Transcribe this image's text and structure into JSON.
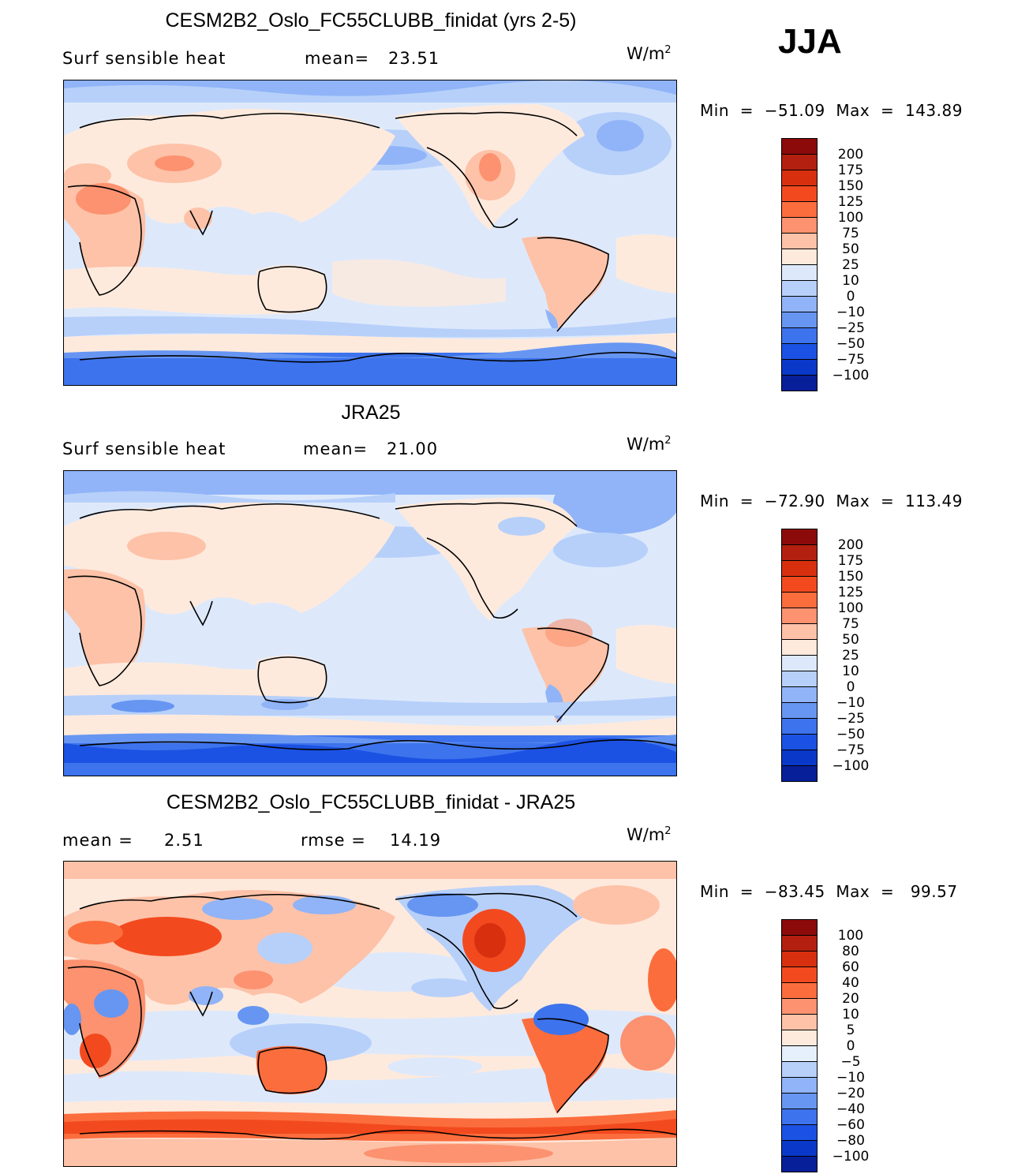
{
  "season": "JJA",
  "chart_data": [
    {
      "type": "heatmap",
      "title": "CESM2B2_Oslo_FC55CLUBB_finidat (yrs 2-5)",
      "variable": "Surf sensible heat",
      "mean_label": "mean=",
      "mean_value": "23.51",
      "units": "W/m",
      "units_power": "2",
      "min_label": "Min",
      "min_value": "−51.09",
      "max_label": "Max",
      "max_value": "143.89",
      "colorbar_levels": [
        "200",
        "175",
        "150",
        "125",
        "100",
        "75",
        "50",
        "25",
        "10",
        "0",
        "−10",
        "−25",
        "−50",
        "−75",
        "−100"
      ],
      "colorbar_colors": [
        "#8c0a0a",
        "#b3200f",
        "#d8300f",
        "#f24a1e",
        "#fc6d3d",
        "#fc9270",
        "#fdc2a8",
        "#feeadd",
        "#dde9fb",
        "#b7d0fa",
        "#90b4f7",
        "#6796f2",
        "#3d73ec",
        "#1c52e3",
        "#0a38c8",
        "#071f98"
      ]
    },
    {
      "type": "heatmap",
      "title": "JRA25",
      "variable": "Surf sensible heat",
      "mean_label": "mean=",
      "mean_value": "21.00",
      "units": "W/m",
      "units_power": "2",
      "min_label": "Min",
      "min_value": "−72.90",
      "max_label": "Max",
      "max_value": "113.49",
      "colorbar_levels": [
        "200",
        "175",
        "150",
        "125",
        "100",
        "75",
        "50",
        "25",
        "10",
        "0",
        "−10",
        "−25",
        "−50",
        "−75",
        "−100"
      ],
      "colorbar_colors": [
        "#8c0a0a",
        "#b3200f",
        "#d8300f",
        "#f24a1e",
        "#fc6d3d",
        "#fc9270",
        "#fdc2a8",
        "#feeadd",
        "#dde9fb",
        "#b7d0fa",
        "#90b4f7",
        "#6796f2",
        "#3d73ec",
        "#1c52e3",
        "#0a38c8",
        "#071f98"
      ]
    },
    {
      "type": "heatmap",
      "title": "CESM2B2_Oslo_FC55CLUBB_finidat - JRA25",
      "mean_label": "mean =",
      "mean_value": "2.51",
      "rmse_label": "rmse =",
      "rmse_value": "14.19",
      "units": "W/m",
      "units_power": "2",
      "min_label": "Min",
      "min_value": "−83.45",
      "max_label": "Max",
      "max_value": "99.57",
      "colorbar_levels": [
        "100",
        "80",
        "60",
        "40",
        "20",
        "10",
        "5",
        "0",
        "−5",
        "−10",
        "−20",
        "−40",
        "−60",
        "−80",
        "−100"
      ],
      "colorbar_colors": [
        "#8c0a0a",
        "#b3200f",
        "#d8300f",
        "#f24a1e",
        "#fc6d3d",
        "#fc9270",
        "#fdc2a8",
        "#feeadd",
        "#e6f0fc",
        "#b7d0fa",
        "#90b4f7",
        "#6796f2",
        "#3d73ec",
        "#1c52e3",
        "#0a38c8",
        "#071f98"
      ]
    }
  ]
}
